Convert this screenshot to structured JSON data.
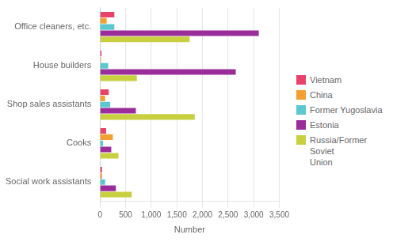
{
  "chart_data": {
    "type": "bar",
    "orientation": "horizontal",
    "categories": [
      "Social work assistants",
      "Cooks",
      "Shop sales assistants",
      "House builders",
      "Office cleaners, etc."
    ],
    "series": [
      {
        "name": "Vietnam",
        "color": "#e8436a",
        "values": [
          40,
          120,
          170,
          30,
          280
        ]
      },
      {
        "name": "China",
        "color": "#f4a030",
        "values": [
          40,
          250,
          100,
          20,
          130
        ]
      },
      {
        "name": "Former Yugoslavia",
        "color": "#5bc8d0",
        "values": [
          100,
          60,
          200,
          160,
          280
        ]
      },
      {
        "name": "Estonia",
        "color": "#9b2d9b",
        "values": [
          310,
          220,
          700,
          2650,
          3100
        ]
      },
      {
        "name": "Russia/Former Soviet\nUnion",
        "color": "#c8d040",
        "values": [
          620,
          360,
          1850,
          720,
          1750
        ]
      }
    ],
    "xlabel": "Number",
    "xlim": [
      0,
      3500
    ],
    "xticks": [
      0,
      500,
      {
        "value": 1000,
        "label": "1,000"
      },
      {
        "value": 1500,
        "label": "1,500"
      },
      {
        "value": 2000,
        "label": "2,000"
      },
      {
        "value": 2500,
        "label": "2,500"
      },
      {
        "value": 3000,
        "label": "3,000"
      },
      {
        "value": 3500,
        "label": "3,500"
      }
    ],
    "grid": true,
    "legend": "right"
  }
}
